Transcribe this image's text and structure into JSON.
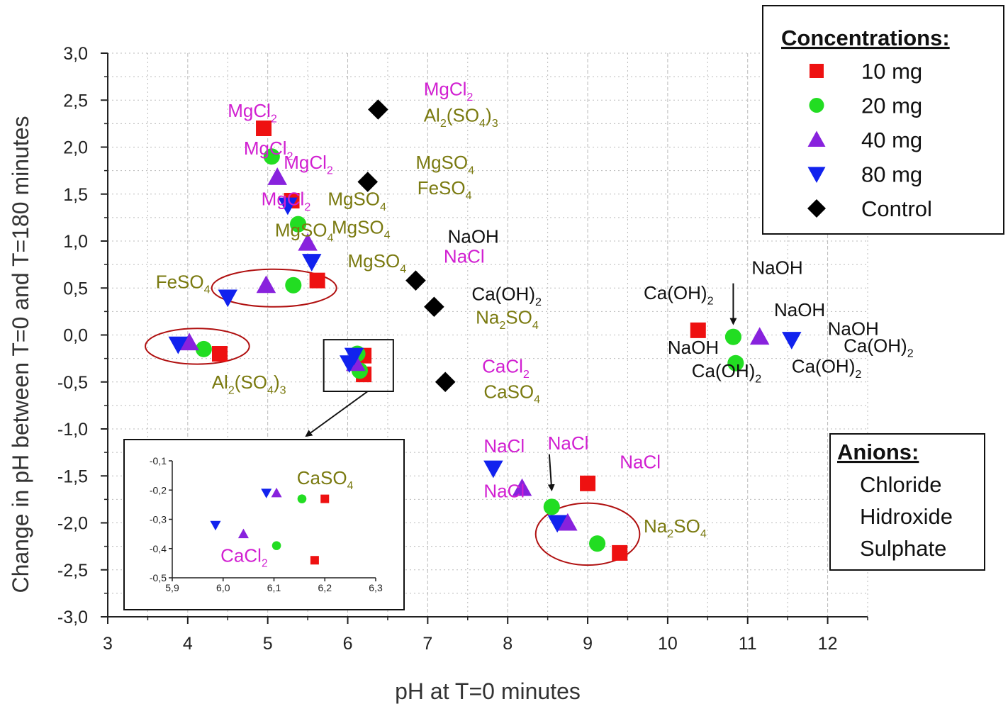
{
  "colors": {
    "chloride": "#d11fd1",
    "hidroxide": "#111111",
    "sulphate": "#7a7a10",
    "c10": "#ee1111",
    "c20": "#22dd22",
    "c40": "#8822dd",
    "c80": "#1122ee",
    "control": "#000000",
    "circle": "#b01010"
  },
  "chart_data": {
    "type": "scatter",
    "xlabel": "pH at T=0 minutes",
    "ylabel": "Change in pH between T=0 and T=180 minutes",
    "xlim": [
      3,
      12.5
    ],
    "ylim": [
      -3.0,
      3.0
    ],
    "xticks": [
      "3",
      "4",
      "5",
      "6",
      "7",
      "8",
      "9",
      "10",
      "11",
      "12"
    ],
    "yticks": [
      "3,0",
      "2,5",
      "2,0",
      "1,5",
      "1,0",
      "0,5",
      "0,0",
      "-0,5",
      "-1,0",
      "-1,5",
      "-2,0",
      "-2,5",
      "-3,0"
    ],
    "grid": true,
    "series": [
      {
        "name": "10 mg",
        "marker": "square",
        "color": "#ee1111",
        "points": [
          [
            4.95,
            2.2
          ],
          [
            5.3,
            1.43
          ],
          [
            5.62,
            0.58
          ],
          [
            4.4,
            -0.2
          ],
          [
            6.2,
            -0.42
          ],
          [
            6.2,
            -0.22
          ],
          [
            10.38,
            0.05
          ],
          [
            9.0,
            -1.58
          ],
          [
            9.4,
            -2.32
          ]
        ]
      },
      {
        "name": "20 mg",
        "marker": "circle",
        "color": "#22dd22",
        "points": [
          [
            5.05,
            1.9
          ],
          [
            5.38,
            1.18
          ],
          [
            5.32,
            0.53
          ],
          [
            4.2,
            -0.15
          ],
          [
            6.12,
            -0.2
          ],
          [
            6.15,
            -0.38
          ],
          [
            10.82,
            -0.02
          ],
          [
            10.85,
            -0.3
          ],
          [
            8.55,
            -1.83
          ],
          [
            9.12,
            -2.22
          ]
        ]
      },
      {
        "name": "40 mg",
        "marker": "triangle-up",
        "color": "#8822dd",
        "points": [
          [
            5.12,
            1.68
          ],
          [
            5.5,
            0.98
          ],
          [
            4.98,
            0.53
          ],
          [
            4.02,
            -0.08
          ],
          [
            6.1,
            -0.3
          ],
          [
            11.15,
            -0.02
          ],
          [
            8.18,
            -1.63
          ],
          [
            8.75,
            -2.0
          ]
        ]
      },
      {
        "name": "80 mg",
        "marker": "triangle-down",
        "color": "#1122ee",
        "points": [
          [
            5.25,
            1.38
          ],
          [
            5.55,
            0.78
          ],
          [
            4.5,
            0.4
          ],
          [
            3.88,
            -0.1
          ],
          [
            6.02,
            -0.3
          ],
          [
            6.08,
            -0.22
          ],
          [
            11.55,
            -0.05
          ],
          [
            7.82,
            -1.42
          ],
          [
            8.62,
            -2.0
          ]
        ]
      },
      {
        "name": "Control",
        "marker": "diamond",
        "color": "#000000",
        "points": [
          [
            6.38,
            2.4
          ],
          [
            6.25,
            1.63
          ],
          [
            6.85,
            0.58
          ],
          [
            7.08,
            0.3
          ],
          [
            7.22,
            -0.5
          ]
        ]
      }
    ],
    "annotations": [
      {
        "text": "MgCl",
        "sub": "2",
        "x": 4.5,
        "y": 2.32,
        "anion": "chloride"
      },
      {
        "text": "MgCl",
        "sub": "2",
        "x": 4.7,
        "y": 1.92,
        "anion": "chloride"
      },
      {
        "text": "MgCl",
        "sub": "2",
        "x": 5.2,
        "y": 1.77,
        "anion": "chloride"
      },
      {
        "text": "MgCl",
        "sub": "2",
        "x": 4.92,
        "y": 1.38,
        "anion": "chloride"
      },
      {
        "text": "MgCl",
        "sub": "2",
        "x": 6.95,
        "y": 2.55,
        "anion": "chloride"
      },
      {
        "text": "Al",
        "sub": "2",
        "tail": "(SO",
        "sub2": "4",
        "tail2": ")",
        "sub3": "3",
        "x": 6.95,
        "y": 2.27,
        "anion": "sulphate"
      },
      {
        "text": "MgSO",
        "sub": "4",
        "x": 6.85,
        "y": 1.77,
        "anion": "sulphate"
      },
      {
        "text": "FeSO",
        "sub": "4",
        "x": 6.87,
        "y": 1.5,
        "anion": "sulphate"
      },
      {
        "text": "MgSO",
        "sub": "4",
        "x": 5.75,
        "y": 1.38,
        "anion": "sulphate"
      },
      {
        "text": "MgSO",
        "sub": "4",
        "x": 5.09,
        "y": 1.05,
        "anion": "sulphate"
      },
      {
        "text": "MgSO",
        "sub": "4",
        "x": 5.8,
        "y": 1.08,
        "anion": "sulphate"
      },
      {
        "text": "MgSO",
        "sub": "4",
        "x": 6.0,
        "y": 0.72,
        "anion": "sulphate"
      },
      {
        "text": "FeSO",
        "sub": "4",
        "x": 3.6,
        "y": 0.5,
        "anion": "sulphate"
      },
      {
        "text": "NaOH",
        "x": 7.25,
        "y": 0.98,
        "anion": "hidroxide"
      },
      {
        "text": "NaCl",
        "x": 7.2,
        "y": 0.77,
        "anion": "chloride"
      },
      {
        "text": "Ca(OH)",
        "sub": "2",
        "x": 7.55,
        "y": 0.37,
        "anion": "hidroxide"
      },
      {
        "text": "Na",
        "sub": "2",
        "tail": "SO",
        "sub2": "4",
        "x": 7.6,
        "y": 0.12,
        "anion": "sulphate"
      },
      {
        "text": "CaCl",
        "sub": "2",
        "x": 7.68,
        "y": -0.4,
        "anion": "chloride"
      },
      {
        "text": "CaSO",
        "sub": "4",
        "x": 7.7,
        "y": -0.67,
        "anion": "sulphate"
      },
      {
        "text": "Al",
        "sub": "2",
        "tail": "(SO",
        "sub2": "4",
        "tail2": ")",
        "sub3": "3",
        "x": 4.3,
        "y": -0.57,
        "anion": "sulphate"
      },
      {
        "text": "NaOH",
        "x": 11.05,
        "y": 0.65,
        "anion": "hidroxide"
      },
      {
        "text": "Ca(OH)",
        "sub": "2",
        "x": 9.7,
        "y": 0.38,
        "anion": "hidroxide"
      },
      {
        "text": "NaOH",
        "x": 11.33,
        "y": 0.2,
        "anion": "hidroxide"
      },
      {
        "text": "NaOH",
        "x": 12.0,
        "y": 0.0,
        "anion": "hidroxide"
      },
      {
        "text": "Ca(OH)",
        "sub": "2",
        "x": 12.2,
        "y": -0.18,
        "anion": "hidroxide"
      },
      {
        "text": "NaOH",
        "x": 10.0,
        "y": -0.2,
        "anion": "hidroxide"
      },
      {
        "text": "Ca(OH)",
        "sub": "2",
        "x": 10.3,
        "y": -0.45,
        "anion": "hidroxide"
      },
      {
        "text": "Ca(OH)",
        "sub": "2",
        "x": 11.55,
        "y": -0.4,
        "anion": "hidroxide"
      },
      {
        "text": "NaCl",
        "x": 7.7,
        "y": -1.25,
        "anion": "chloride"
      },
      {
        "text": "NaCl",
        "x": 8.5,
        "y": -1.22,
        "anion": "chloride"
      },
      {
        "text": "NaCl",
        "x": 9.4,
        "y": -1.42,
        "anion": "chloride"
      },
      {
        "text": "NaCl",
        "x": 7.7,
        "y": -1.73,
        "anion": "chloride"
      },
      {
        "text": "Na",
        "sub": "2",
        "tail": "SO",
        "sub2": "4",
        "x": 9.7,
        "y": -2.1,
        "anion": "sulphate"
      }
    ],
    "ellipses": [
      {
        "cx": 5.08,
        "cy": 0.5,
        "rx": 0.78,
        "ry": 0.2
      },
      {
        "cx": 4.12,
        "cy": -0.12,
        "rx": 0.65,
        "ry": 0.19
      },
      {
        "cx": 9.0,
        "cy": -2.12,
        "rx": 0.65,
        "ry": 0.33
      }
    ],
    "arrows": [
      {
        "x1": 10.82,
        "y1": 0.55,
        "x2": 10.82,
        "y2": 0.12
      },
      {
        "x1": 8.52,
        "y1": -1.27,
        "x2": 8.55,
        "y2": -1.65
      }
    ],
    "zoom_box": {
      "x1": 5.7,
      "y1": -0.05,
      "x2": 6.57,
      "y2": -0.6
    },
    "inset": {
      "xlim": [
        5.9,
        6.3
      ],
      "ylim": [
        -0.5,
        -0.1
      ],
      "xticks": [
        "5,9",
        "6,0",
        "6,1",
        "6,2",
        "6,3"
      ],
      "yticks": [
        "-0,1",
        "-0,2",
        "-0,3",
        "-0,4",
        "-0,5"
      ],
      "series": [
        {
          "name": "10 mg",
          "marker": "square",
          "color": "#ee1111",
          "points": [
            [
              6.2,
              -0.23
            ],
            [
              6.18,
              -0.44
            ]
          ]
        },
        {
          "name": "20 mg",
          "marker": "circle",
          "color": "#22dd22",
          "points": [
            [
              6.155,
              -0.23
            ],
            [
              6.105,
              -0.39
            ]
          ]
        },
        {
          "name": "40 mg",
          "marker": "triangle-up",
          "color": "#8822dd",
          "points": [
            [
              6.105,
              -0.21
            ],
            [
              6.04,
              -0.35
            ]
          ]
        },
        {
          "name": "80 mg",
          "marker": "triangle-down",
          "color": "#1122ee",
          "points": [
            [
              6.085,
              -0.21
            ],
            [
              5.985,
              -0.32
            ]
          ]
        }
      ],
      "annotations": [
        {
          "text": "CaSO",
          "sub": "4",
          "x": 6.145,
          "y": -0.18,
          "anion": "sulphate"
        },
        {
          "text": "CaCl",
          "sub": "2",
          "x": 5.995,
          "y": -0.445,
          "anion": "chloride"
        }
      ]
    }
  },
  "legend": {
    "title": "Concentrations:",
    "items": [
      {
        "label": "10 mg",
        "marker": "square",
        "color": "#ee1111"
      },
      {
        "label": "20 mg",
        "marker": "circle",
        "color": "#22dd22"
      },
      {
        "label": "40 mg",
        "marker": "triangle-up",
        "color": "#8822dd"
      },
      {
        "label": "80 mg",
        "marker": "triangle-down",
        "color": "#1122ee"
      },
      {
        "label": "Control",
        "marker": "diamond",
        "color": "#000000"
      }
    ]
  },
  "anions_legend": {
    "title": "Anions:",
    "items": [
      {
        "label": "Chloride",
        "color": "#d11fd1"
      },
      {
        "label": "Hidroxide",
        "color": "#111111"
      },
      {
        "label": "Sulphate",
        "color": "#7a7a10"
      }
    ]
  }
}
